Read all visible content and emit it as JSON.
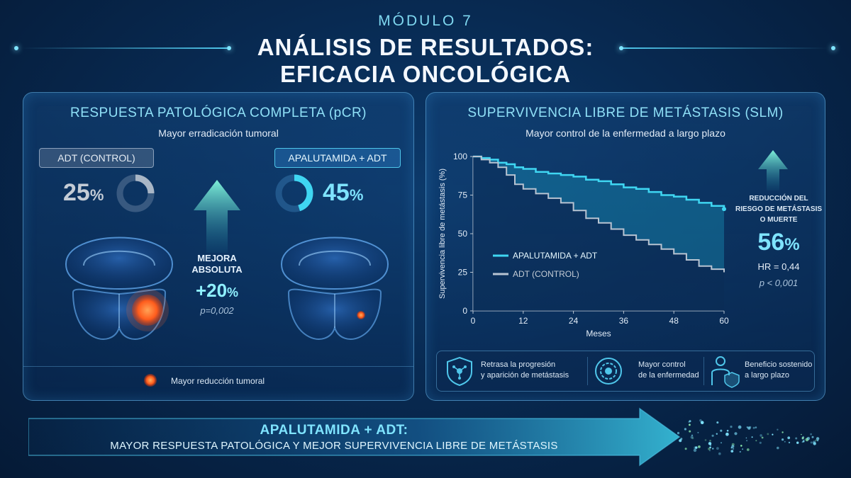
{
  "header": {
    "module": "MÓDULO 7",
    "title_line1": "ANÁLISIS DE RESULTADOS:",
    "title_line2": "EFICACIA ONCOLÓGICA"
  },
  "left_panel": {
    "title": "RESPUESTA PATOLÓGICA COMPLETA (pCR)",
    "subtitle": "Mayor erradicación tumoral",
    "control_label": "ADT (CONTROL)",
    "control_value": "25",
    "control_fraction": 0.25,
    "treat_label": "APALUTAMIDA + ADT",
    "treat_value": "45",
    "treat_fraction": 0.45,
    "percent_sign": "%",
    "improvement_line1": "MEJORA",
    "improvement_line2": "ABSOLUTA",
    "improvement_value": "+20",
    "improvement_p": "p=0,002",
    "legend": "Mayor reducción tumoral"
  },
  "right_panel": {
    "title": "SUPERVIVENCIA LIBRE DE METÁSTASIS (SLM)",
    "subtitle": "Mayor control de la enfermedad a largo plazo",
    "risk_line1": "REDUCCIÓN DEL",
    "risk_line2": "RIESGO DE METÁSTASIS",
    "risk_line3": "O MUERTE",
    "risk_value": "56",
    "percent_sign": "%",
    "hr": "HR = 0,44",
    "p": "p < 0,001",
    "benefits": [
      {
        "line1": "Retrasa la progresión",
        "line2": "y aparición de metástasis"
      },
      {
        "line1": "Mayor control",
        "line2": "de la enfermedad"
      },
      {
        "line1": "Beneficio sostenido",
        "line2": "a largo plazo"
      }
    ]
  },
  "chart_data": {
    "type": "line",
    "xlabel": "Meses",
    "ylabel": "Supervivencia libre de metástasis (%)",
    "xlim": [
      0,
      60
    ],
    "ylim": [
      0,
      100
    ],
    "xticks": [
      0,
      12,
      24,
      36,
      48,
      60
    ],
    "yticks": [
      0,
      25,
      50,
      75,
      100
    ],
    "legend_position": "center-left",
    "series": [
      {
        "name": "APALUTAMIDA + ADT",
        "color": "#3fd6f2",
        "x": [
          0,
          2,
          4,
          6,
          8,
          10,
          12,
          15,
          18,
          21,
          24,
          27,
          30,
          33,
          36,
          39,
          42,
          45,
          48,
          51,
          54,
          57,
          60
        ],
        "y": [
          100,
          99,
          98,
          96,
          95,
          93,
          92,
          90,
          89,
          88,
          87,
          85,
          84,
          82,
          80,
          79,
          77,
          75,
          74,
          72,
          70,
          68,
          66
        ]
      },
      {
        "name": "ADT (CONTROL)",
        "color": "#b8c4d2",
        "x": [
          0,
          2,
          4,
          6,
          8,
          10,
          12,
          15,
          18,
          21,
          24,
          27,
          30,
          33,
          36,
          39,
          42,
          45,
          48,
          51,
          54,
          57,
          60
        ],
        "y": [
          100,
          98,
          96,
          93,
          88,
          82,
          79,
          76,
          73,
          70,
          65,
          60,
          57,
          53,
          49,
          46,
          43,
          40,
          37,
          33,
          29,
          27,
          25
        ]
      }
    ]
  },
  "footer": {
    "line1": "APALUTAMIDA + ADT:",
    "line2": "MAYOR RESPUESTA PATOLÓGICA Y MEJOR SUPERVIVENCIA LIBRE DE METÁSTASIS"
  },
  "colors": {
    "accent": "#4fc6ea",
    "control": "#b8c4d2",
    "tumor": "#ff6a2a"
  }
}
